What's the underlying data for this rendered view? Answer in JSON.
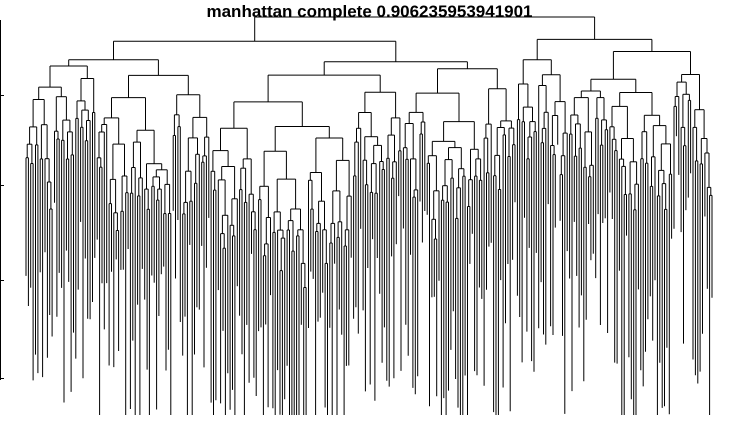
{
  "chart_data": {
    "type": "dendrogram",
    "title": "manhattan complete 0.906235953941901",
    "xlabel": "",
    "ylabel": "",
    "leaf_count_estimate": 290,
    "grid": false,
    "legend": "none",
    "line_color": "#000000",
    "note_leaves": "leaf labels are not printed; only the tree structure is shown"
  },
  "colors": {
    "background": "#ffffff",
    "line": "#000000"
  }
}
